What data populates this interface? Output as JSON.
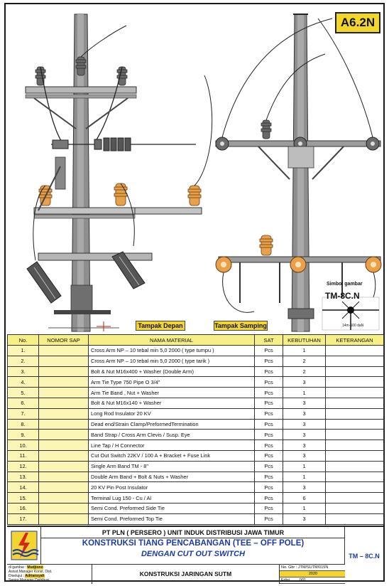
{
  "badge": "A6.2N",
  "labels": {
    "front_view": "Tampak Depan",
    "side_view": "Tampak Samping",
    "symbol_title": "Simbol gambar",
    "symbol_code": "TM-8C.N",
    "symbol_sub": "14m-500 daN"
  },
  "table": {
    "headers": [
      "No.",
      "NOMOR SAP",
      "NAMA MATERIAL",
      "SAT",
      "KEBUTUHAN",
      "KETERANGAN"
    ],
    "rows": [
      {
        "no": "1.",
        "name": "Cross Arm NP – 10 tebal min 5,0  2000 ( type tumpu )",
        "sat": "Pcs",
        "qty": "1"
      },
      {
        "no": "2.",
        "name": "Cross Arm NP – 10 tebal min 5,0  2000  ( type tarik )",
        "sat": "Pcs",
        "qty": "2"
      },
      {
        "no": "3.",
        "name": "Bolt & Nut M16x400 + Washer (Double Arm)",
        "sat": "Pcs",
        "qty": "2"
      },
      {
        "no": "4.",
        "name": "Arm Tie Type 750 Pipe O 3/4\"",
        "sat": "Pcs",
        "qty": "3"
      },
      {
        "no": "5.",
        "name": "Arm Tie Band , Nut + Washer",
        "sat": "Pcs",
        "qty": "1"
      },
      {
        "no": "6.",
        "name": "Bolt & Nut M16x140 + Washer",
        "sat": "Pcs",
        "qty": "3"
      },
      {
        "no": "7.",
        "name": "Long Rod Insulator 20 KV",
        "sat": "Pcs",
        "qty": "3"
      },
      {
        "no": "8.",
        "name": "Dead end/Strain Clamp/PreformedTermination",
        "sat": "Pcs",
        "qty": "3"
      },
      {
        "no": "9.",
        "name": "Band Strap / Cross Arm Clevis / Susp. Eye",
        "sat": "Pcs",
        "qty": "3"
      },
      {
        "no": "10.",
        "name": "Line Tap / H Connector",
        "sat": "Pcs",
        "qty": "3"
      },
      {
        "no": "11.",
        "name": "Cut Out Switch 22KV / 100 A + Bracket + Fuse Link",
        "sat": "Pcs",
        "qty": "3"
      },
      {
        "no": "12.",
        "name": "Single Arm Band TM - 8\"",
        "sat": "Pcs",
        "qty": "1"
      },
      {
        "no": "13.",
        "name": "Double Arm Band + Bolt & Nuts + Washer",
        "sat": "Pcs",
        "qty": "1"
      },
      {
        "no": "14.",
        "name": "20 KV Pin Post Insulator",
        "sat": "Pcs",
        "qty": "3"
      },
      {
        "no": "15.",
        "name": "Terminal Lug 150 - Cu / Al",
        "sat": "Pcs",
        "qty": "6"
      },
      {
        "no": "16.",
        "name": "Semi Cond. Preformed Side Tie",
        "sat": "Pcs",
        "qty": "1"
      },
      {
        "no": "17.",
        "name": "Semi Cond. Preformed Top Tie",
        "sat": "Pcs",
        "qty": "3"
      }
    ]
  },
  "title_block": {
    "company": "PT PLN ( PERSERO ) UNIT INDUK DISTRIBUSI JAWA TIMUR",
    "title1": "KONSTRUKSI TIANG PENCABANGAN (TEE – OFF POLE)",
    "title2": "DENGAN CUT OUT SWITCH",
    "code": "TM – 8C.N",
    "subtitle": "KONSTRUKSI JARINGAN SUTM",
    "drawn_label": "di gambar :",
    "drawn_name": "Mudjiono",
    "drawn_role": "Asisst.Manager Konst. Dist.",
    "approved_label": "Disetujui :",
    "approved_name": "Adriansyah",
    "approved_role": "Senior Manager Distribusi",
    "drawing_no": "No. Gbr : JTM/SUTM/015N",
    "edition_label": "Edisi",
    "year": "2020",
    "edition": "001"
  },
  "colors": {
    "accent_yellow": "#f3d430",
    "title_blue": "#1a3aa6",
    "pole_grey": "#8a8a8a",
    "insulator_orange": "#e6a14a"
  }
}
